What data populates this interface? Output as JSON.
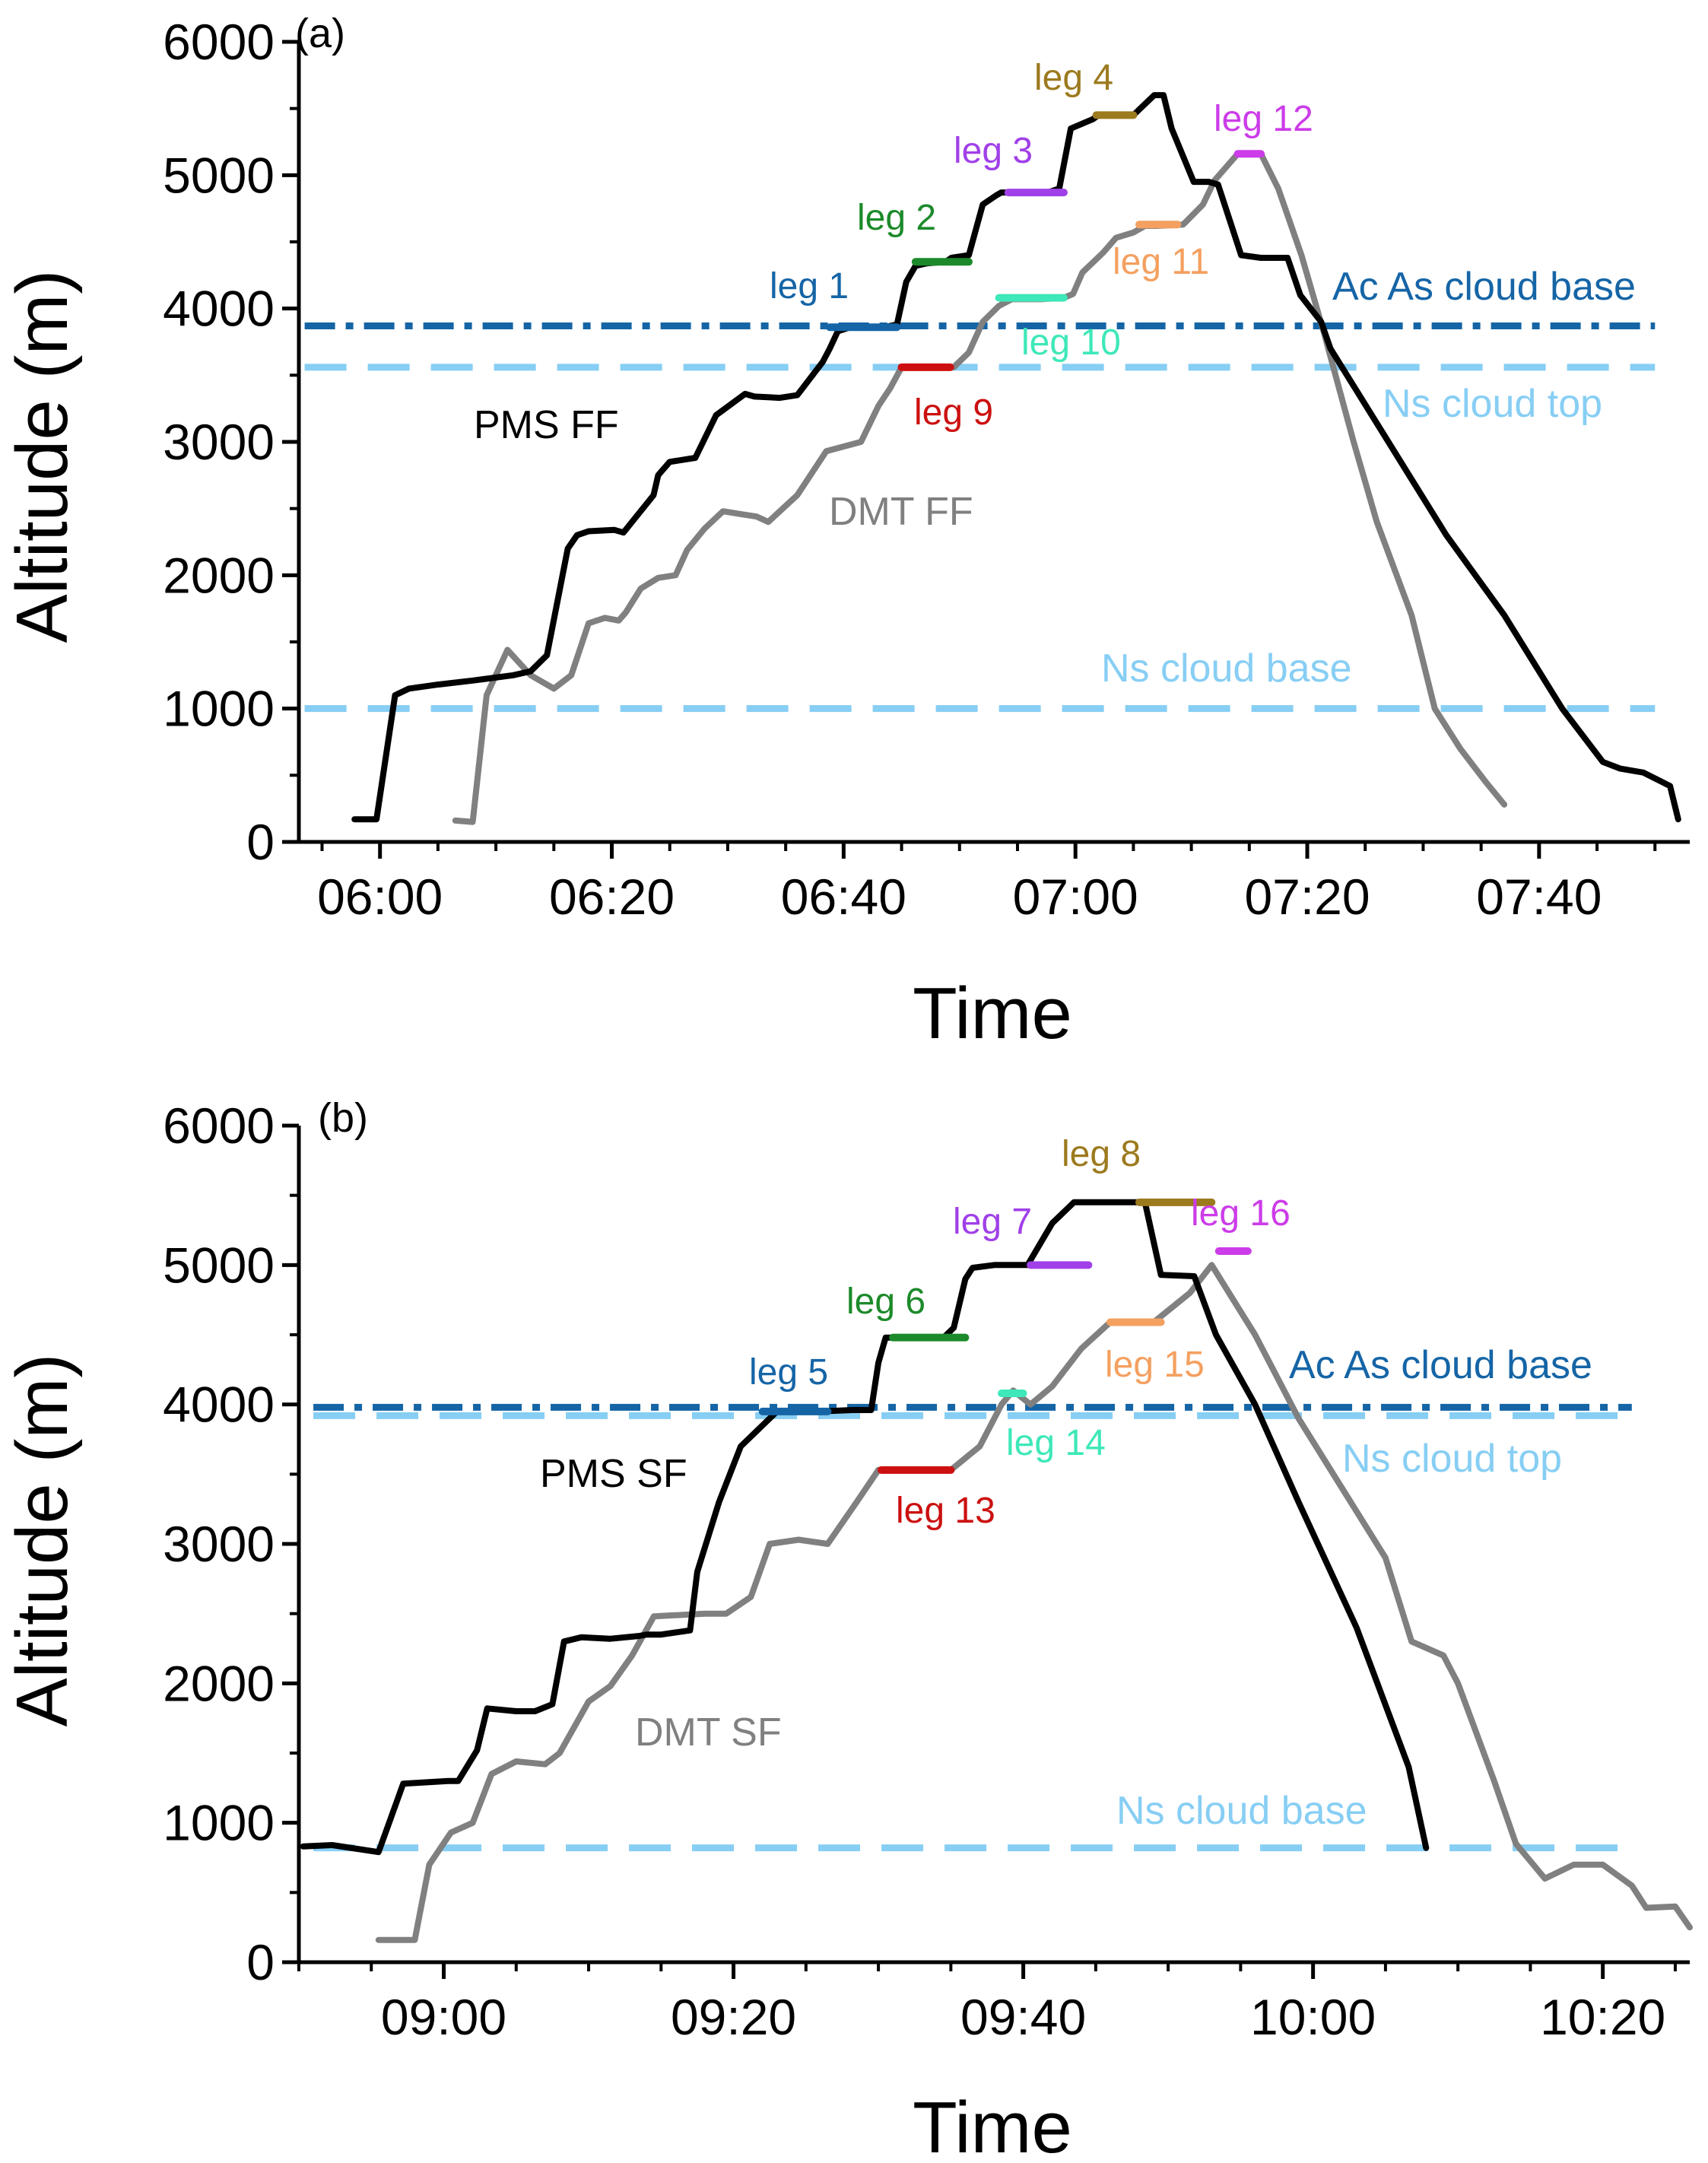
{
  "colors": {
    "pms": "#000000",
    "dmt": "#808080",
    "ac_as": "#1565a6",
    "ns": "#87cef4",
    "axis": "#000000"
  },
  "leg_colors": {
    "blue": "#1565a6",
    "green": "#1c8a2a",
    "purple": "#a040e8",
    "brown": "#9c7a1e",
    "magenta": "#cc3ce8",
    "red": "#cc1010",
    "aqua": "#3ee8b8",
    "orange": "#f4a060"
  },
  "chart_data": [
    {
      "type": "line",
      "panel_label": "(a)",
      "xlabel": "Time",
      "ylabel": "Altitude (m)",
      "x_unit": "minutes since 00:00",
      "xlim": [
        353,
        473
      ],
      "ylim": [
        0,
        6000
      ],
      "yticks": [
        0,
        1000,
        2000,
        3000,
        4000,
        5000,
        6000
      ],
      "ytick_labels": [
        "0",
        "1000",
        "2000",
        "3000",
        "4000",
        "5000",
        "6000"
      ],
      "xticks": [
        360,
        380,
        400,
        420,
        440,
        460
      ],
      "xtick_labels": [
        "06:00",
        "06:20",
        "06:40",
        "07:00",
        "07:20",
        "07:40"
      ],
      "series": [
        {
          "name": "PMS FF",
          "color_key": "pms",
          "x": [
            357.8,
            359.7,
            361.3,
            362.5,
            365,
            368,
            371.5,
            373,
            374.4,
            376.2,
            377,
            378,
            380.2,
            381,
            383.6,
            384,
            385,
            387.2,
            389,
            391.5,
            392.3,
            394.5,
            396,
            398.2,
            398.8,
            399.5,
            400.6,
            402.2,
            403.5,
            404.6,
            405.4,
            406.2,
            407.2,
            408.8,
            409.3,
            410.8,
            412,
            413.2,
            413.6,
            414.6,
            416,
            417.6,
            418.6,
            419.6,
            421.5,
            422,
            424,
            425,
            426.8,
            427.6,
            428.3,
            430.2,
            431.5,
            432.3,
            434.3,
            436,
            437.5,
            438.3,
            439.4,
            441.2,
            442,
            447,
            452,
            457,
            462,
            465.5,
            467,
            469,
            471.3,
            472
          ],
          "y": [
            170,
            170,
            1100,
            1150,
            1180,
            1210,
            1250,
            1280,
            1400,
            2200,
            2300,
            2330,
            2340,
            2320,
            2600,
            2750,
            2850,
            2880,
            3200,
            3360,
            3340,
            3330,
            3350,
            3600,
            3700,
            3830,
            3860,
            3860,
            3860,
            3880,
            4200,
            4320,
            4340,
            4350,
            4380,
            4400,
            4780,
            4850,
            4870,
            4870,
            4870,
            4870,
            4900,
            5350,
            5420,
            5450,
            5450,
            5450,
            5600,
            5600,
            5350,
            4950,
            4950,
            4930,
            4400,
            4380,
            4380,
            4380,
            4100,
            3900,
            3700,
            3000,
            2300,
            1700,
            1000,
            600,
            550,
            520,
            420,
            170
          ],
          "label": "PMS FF"
        },
        {
          "name": "DMT FF",
          "color_key": "dmt",
          "x": [
            366.5,
            368,
            369.2,
            371,
            373,
            375,
            376.5,
            378,
            379.4,
            380.6,
            381.2,
            382.5,
            384,
            385.5,
            386.5,
            388,
            389.6,
            391,
            392.5,
            393.5,
            396,
            398.5,
            401.5,
            403,
            404,
            405,
            406.5,
            407.8,
            409.5,
            410.8,
            412,
            413.4,
            414.5,
            417,
            419,
            419.8,
            420.6,
            422.4,
            423.5,
            425,
            426,
            427,
            429.3,
            431,
            432,
            434,
            436,
            437.5,
            439.5,
            441.5,
            444,
            446,
            449,
            451,
            453.2,
            455.4,
            457
          ],
          "y": [
            160,
            150,
            1100,
            1440,
            1250,
            1150,
            1250,
            1640,
            1680,
            1660,
            1720,
            1900,
            1980,
            2000,
            2190,
            2350,
            2480,
            2460,
            2440,
            2400,
            2600,
            2930,
            3000,
            3270,
            3400,
            3560,
            3560,
            3560,
            3560,
            3670,
            3900,
            4020,
            4070,
            4070,
            4080,
            4110,
            4270,
            4420,
            4530,
            4570,
            4620,
            4620,
            4630,
            4780,
            4960,
            5160,
            5160,
            4900,
            4400,
            3800,
            3000,
            2400,
            1700,
            1000,
            700,
            450,
            280
          ],
          "label": "DMT FF"
        }
      ],
      "legs": [
        {
          "label": "leg 1",
          "color_key": "blue",
          "x0": 398.8,
          "x1": 404.6,
          "y": 3860
        },
        {
          "label": "leg 2",
          "color_key": "green",
          "x0": 406.2,
          "x1": 410.8,
          "y": 4350
        },
        {
          "label": "leg 3",
          "color_key": "purple",
          "x0": 414.2,
          "x1": 419.0,
          "y": 4870
        },
        {
          "label": "leg 4",
          "color_key": "brown",
          "x0": 421.8,
          "x1": 425.0,
          "y": 5450
        },
        {
          "label": "leg 9",
          "color_key": "red",
          "x0": 405.0,
          "x1": 409.2,
          "y": 3560
        },
        {
          "label": "leg 10",
          "color_key": "aqua",
          "x0": 413.4,
          "x1": 419.0,
          "y": 4080
        },
        {
          "label": "leg 11",
          "color_key": "orange",
          "x0": 425.5,
          "x1": 428.8,
          "y": 4630
        },
        {
          "label": "leg 12",
          "color_key": "magenta",
          "x0": 434.0,
          "x1": 436.0,
          "y": 5160
        }
      ],
      "hlines": [
        {
          "label": "Ac As cloud base",
          "y": 3870,
          "x0": 353.5,
          "x1": 470.0,
          "style": "dashdot",
          "color_key": "ac_as"
        },
        {
          "label": "Ns cloud top",
          "y": 3560,
          "x0": 353.5,
          "x1": 470.0,
          "style": "dash",
          "color_key": "ns"
        },
        {
          "label": "Ns cloud base",
          "y": 1000,
          "x0": 353.5,
          "x1": 470.0,
          "style": "dash",
          "color_key": "ns"
        }
      ]
    },
    {
      "type": "line",
      "panel_label": "(b)",
      "xlabel": "Time",
      "ylabel": "Altitude (m)",
      "x_unit": "minutes since 00:00",
      "xlim": [
        530,
        626
      ],
      "ylim": [
        0,
        6000
      ],
      "yticks": [
        0,
        1000,
        2000,
        3000,
        4000,
        5000,
        6000
      ],
      "ytick_labels": [
        "0",
        "1000",
        "2000",
        "3000",
        "4000",
        "5000",
        "6000"
      ],
      "xticks": [
        540,
        560,
        580,
        600,
        620
      ],
      "xtick_labels": [
        "09:00",
        "09:20",
        "09:40",
        "10:00",
        "10:20"
      ],
      "series": [
        {
          "name": "PMS SF",
          "color_key": "pms",
          "x": [
            530.3,
            532.3,
            535.5,
            537.2,
            540.3,
            541,
            542.3,
            543,
            545,
            546.3,
            547.5,
            548.3,
            549.5,
            551.5,
            553.5,
            554,
            555,
            557,
            557.5,
            559,
            560.5,
            563,
            566,
            568.2,
            569.5,
            570,
            570.5,
            571,
            573,
            573.5,
            574.5,
            575.2,
            576,
            576.5,
            578,
            579.7,
            580.3,
            582,
            583.5,
            584.5,
            586.5,
            587.5,
            588.4,
            589.5,
            591.8,
            593.3,
            596,
            599,
            603,
            606.6,
            607.8
          ],
          "y": [
            830,
            840,
            790,
            1280,
            1300,
            1300,
            1520,
            1820,
            1800,
            1800,
            1850,
            2300,
            2330,
            2320,
            2340,
            2350,
            2350,
            2380,
            2800,
            3300,
            3700,
            3950,
            3950,
            3960,
            3960,
            4300,
            4480,
            4480,
            4480,
            4480,
            4480,
            4550,
            4900,
            4980,
            5000,
            5000,
            5000,
            5300,
            5450,
            5450,
            5450,
            5450,
            5450,
            4930,
            4920,
            4500,
            4000,
            3300,
            2400,
            1400,
            820
          ],
          "label": "PMS SF"
        },
        {
          "name": "DMT SF",
          "color_key": "dmt",
          "x": [
            535.5,
            538,
            539,
            540.5,
            542,
            543.3,
            545,
            547,
            548,
            550,
            551.5,
            553,
            554.5,
            558,
            559.5,
            561.2,
            562.5,
            564.5,
            566.5,
            568.5,
            570,
            570.5,
            572,
            575,
            577,
            578.5,
            579.3,
            580.5,
            582,
            584,
            586,
            588,
            589,
            591.5,
            593,
            596,
            599,
            602,
            605,
            606.8,
            609,
            610,
            612.5,
            614,
            616,
            618,
            620,
            622,
            623,
            625,
            626
          ],
          "y": [
            160,
            160,
            700,
            930,
            1000,
            1350,
            1440,
            1420,
            1500,
            1870,
            1980,
            2200,
            2480,
            2500,
            2500,
            2620,
            3000,
            3030,
            3000,
            3300,
            3530,
            3530,
            3530,
            3530,
            3700,
            4000,
            4100,
            4000,
            4130,
            4400,
            4590,
            4590,
            4590,
            4800,
            5000,
            4500,
            3900,
            3400,
            2900,
            2300,
            2200,
            2000,
            1300,
            850,
            600,
            700,
            700,
            550,
            390,
            400,
            250
          ],
          "label": "DMT SF"
        }
      ],
      "legs": [
        {
          "label": "leg 5",
          "color_key": "blue",
          "x0": 562.0,
          "x1": 566.5,
          "y": 3950
        },
        {
          "label": "leg 6",
          "color_key": "green",
          "x0": 571.0,
          "x1": 576.0,
          "y": 4480
        },
        {
          "label": "leg 7",
          "color_key": "purple",
          "x0": 580.5,
          "x1": 584.5,
          "y": 5000
        },
        {
          "label": "leg 8",
          "color_key": "brown",
          "x0": 588.0,
          "x1": 593.0,
          "y": 5450
        },
        {
          "label": "leg 13",
          "color_key": "red",
          "x0": 570.2,
          "x1": 575.0,
          "y": 3530
        },
        {
          "label": "leg 14",
          "color_key": "aqua",
          "x0": 578.5,
          "x1": 580.0,
          "y": 4080
        },
        {
          "label": "leg 15",
          "color_key": "orange",
          "x0": 586.0,
          "x1": 589.5,
          "y": 4590
        },
        {
          "label": "leg 16",
          "color_key": "magenta",
          "x0": 593.5,
          "x1": 595.5,
          "y": 5100
        }
      ],
      "hlines": [
        {
          "label": "Ac As cloud base",
          "y": 3980,
          "x0": 531.0,
          "x1": 622.0,
          "style": "dashdot",
          "color_key": "ac_as"
        },
        {
          "label": "Ns cloud top",
          "y": 3920,
          "x0": 531.0,
          "x1": 622.0,
          "style": "dash",
          "color_key": "ns"
        },
        {
          "label": "Ns cloud base",
          "y": 820,
          "x0": 531.0,
          "x1": 622.0,
          "style": "dash",
          "color_key": "ns"
        }
      ]
    }
  ]
}
